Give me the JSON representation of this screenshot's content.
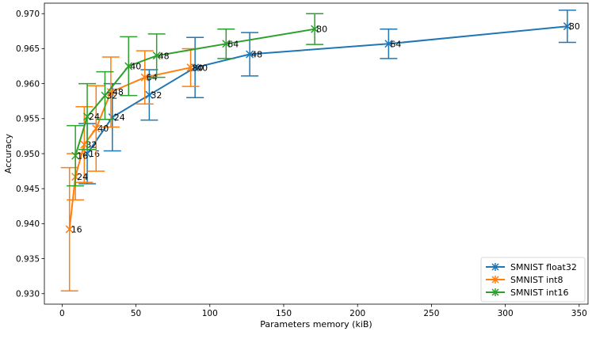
{
  "chart_data": {
    "type": "line",
    "xlabel": "Parameters memory (kiB)",
    "ylabel": "Accuracy",
    "xlim": [
      -12,
      356
    ],
    "ylim": [
      0.9285,
      0.9715
    ],
    "xticks": [
      0,
      50,
      100,
      150,
      200,
      250,
      300,
      350
    ],
    "yticks": [
      0.93,
      0.935,
      0.94,
      0.945,
      0.95,
      0.955,
      0.96,
      0.965,
      0.97
    ],
    "legend_position": "bottom-right",
    "series": [
      {
        "name": "SMNIST float32",
        "color": "#1f77b4",
        "points": [
          {
            "x": 17,
            "y": 0.95,
            "err": 0.0043,
            "label": "16"
          },
          {
            "x": 34,
            "y": 0.9552,
            "err": 0.0048,
            "label": "24"
          },
          {
            "x": 59,
            "y": 0.9584,
            "err": 0.0036,
            "label": "32"
          },
          {
            "x": 90,
            "y": 0.9623,
            "err": 0.0043,
            "label": "40"
          },
          {
            "x": 127,
            "y": 0.9642,
            "err": 0.0031,
            "label": "48"
          },
          {
            "x": 221,
            "y": 0.9657,
            "err": 0.0021,
            "label": "64"
          },
          {
            "x": 342,
            "y": 0.9682,
            "err": 0.0023,
            "label": "80"
          }
        ]
      },
      {
        "name": "SMNIST int8",
        "color": "#ff7f0e",
        "points": [
          {
            "x": 5,
            "y": 0.9392,
            "err": 0.0088,
            "label": "16"
          },
          {
            "x": 9,
            "y": 0.9467,
            "err": 0.0033,
            "label": "24"
          },
          {
            "x": 15,
            "y": 0.9513,
            "err": 0.0054,
            "label": "32"
          },
          {
            "x": 23,
            "y": 0.9536,
            "err": 0.0061,
            "label": "40"
          },
          {
            "x": 33,
            "y": 0.9588,
            "err": 0.005,
            "label": "48"
          },
          {
            "x": 56,
            "y": 0.9609,
            "err": 0.0038,
            "label": "64"
          },
          {
            "x": 87,
            "y": 0.9623,
            "err": 0.0027,
            "label": "80"
          }
        ]
      },
      {
        "name": "SMNIST int16",
        "color": "#2ca02c",
        "points": [
          {
            "x": 9,
            "y": 0.9497,
            "err": 0.0043,
            "label": "16"
          },
          {
            "x": 17,
            "y": 0.9553,
            "err": 0.0047,
            "label": "24"
          },
          {
            "x": 29,
            "y": 0.9583,
            "err": 0.0034,
            "label": "32"
          },
          {
            "x": 45,
            "y": 0.9625,
            "err": 0.0042,
            "label": "40"
          },
          {
            "x": 64,
            "y": 0.964,
            "err": 0.0031,
            "label": "48"
          },
          {
            "x": 111,
            "y": 0.9657,
            "err": 0.0021,
            "label": "64"
          },
          {
            "x": 171,
            "y": 0.9678,
            "err": 0.0022,
            "label": "80"
          }
        ]
      }
    ]
  }
}
